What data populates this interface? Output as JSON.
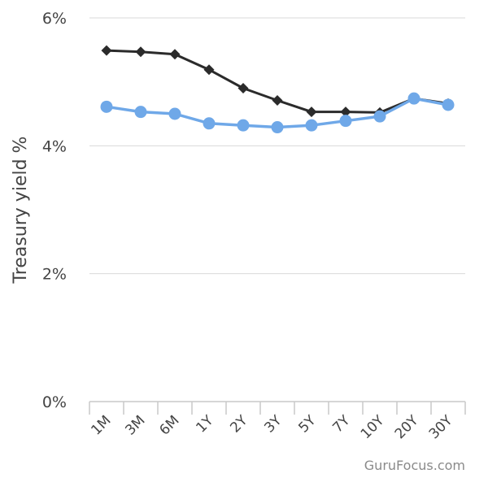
{
  "chart_data": {
    "type": "line",
    "title": "",
    "xlabel": "",
    "ylabel": "Treasury yield %",
    "categories": [
      "1M",
      "3M",
      "6M",
      "1Y",
      "2Y",
      "3Y",
      "5Y",
      "7Y",
      "10Y",
      "20Y",
      "30Y"
    ],
    "yticks": [
      0,
      2,
      4,
      6
    ],
    "ytick_labels": [
      "0%",
      "2%",
      "4%",
      "6%"
    ],
    "ylim": [
      0,
      6
    ],
    "grid": true,
    "legend": "none",
    "series": [
      {
        "color": "#2b2b2b",
        "marker": "diamond",
        "values": [
          5.49,
          5.47,
          5.43,
          5.19,
          4.9,
          4.71,
          4.53,
          4.53,
          4.52,
          4.74,
          4.66
        ]
      },
      {
        "color": "#6fa8e8",
        "marker": "circle",
        "values": [
          4.61,
          4.53,
          4.5,
          4.35,
          4.32,
          4.29,
          4.32,
          4.39,
          4.46,
          4.74,
          4.64
        ]
      }
    ],
    "credit": "GuruFocus.com"
  }
}
